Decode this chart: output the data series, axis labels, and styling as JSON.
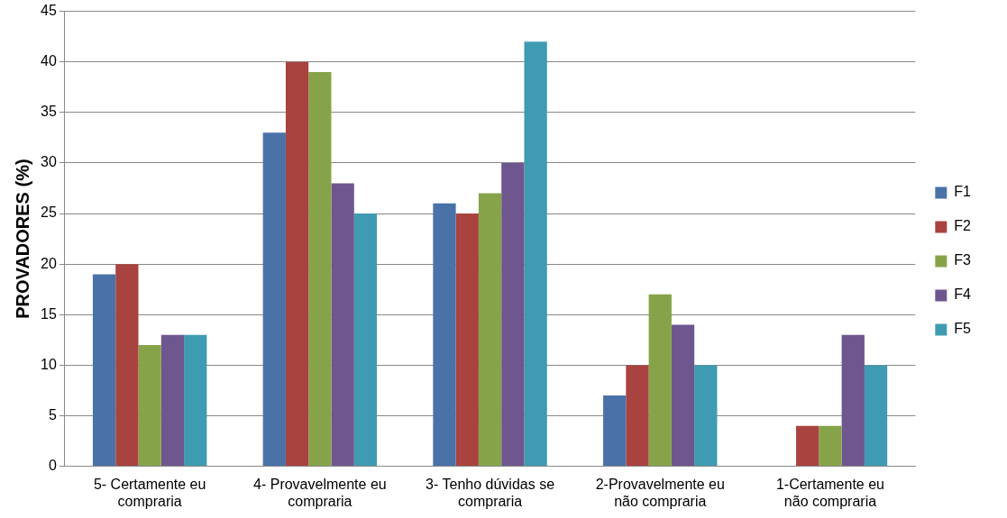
{
  "chart_data": {
    "type": "bar",
    "ylabel": "PROVADORES (%)",
    "categories": [
      "5- Certamente eu compraria",
      "4- Provavelmente eu compraria",
      "3- Tenho dúvidas se compraria",
      "2-Provavelmente eu não compraria",
      "1-Certamente eu não compraria"
    ],
    "series": [
      {
        "name": "F1",
        "color": "#4a72a8",
        "values": [
          19,
          33,
          26,
          7,
          0
        ]
      },
      {
        "name": "F2",
        "color": "#a84340",
        "values": [
          20,
          40,
          25,
          10,
          4
        ]
      },
      {
        "name": "F3",
        "color": "#86a34a",
        "values": [
          12,
          39,
          27,
          17,
          4
        ]
      },
      {
        "name": "F4",
        "color": "#6e568f",
        "values": [
          13,
          28,
          30,
          14,
          13
        ]
      },
      {
        "name": "F5",
        "color": "#3f9bb1",
        "values": [
          13,
          25,
          42,
          10,
          10
        ]
      }
    ],
    "ylim": [
      0,
      45
    ],
    "yticks": [
      0,
      5,
      10,
      15,
      20,
      25,
      30,
      35,
      40,
      45
    ],
    "grid": "y",
    "legend": "right"
  }
}
